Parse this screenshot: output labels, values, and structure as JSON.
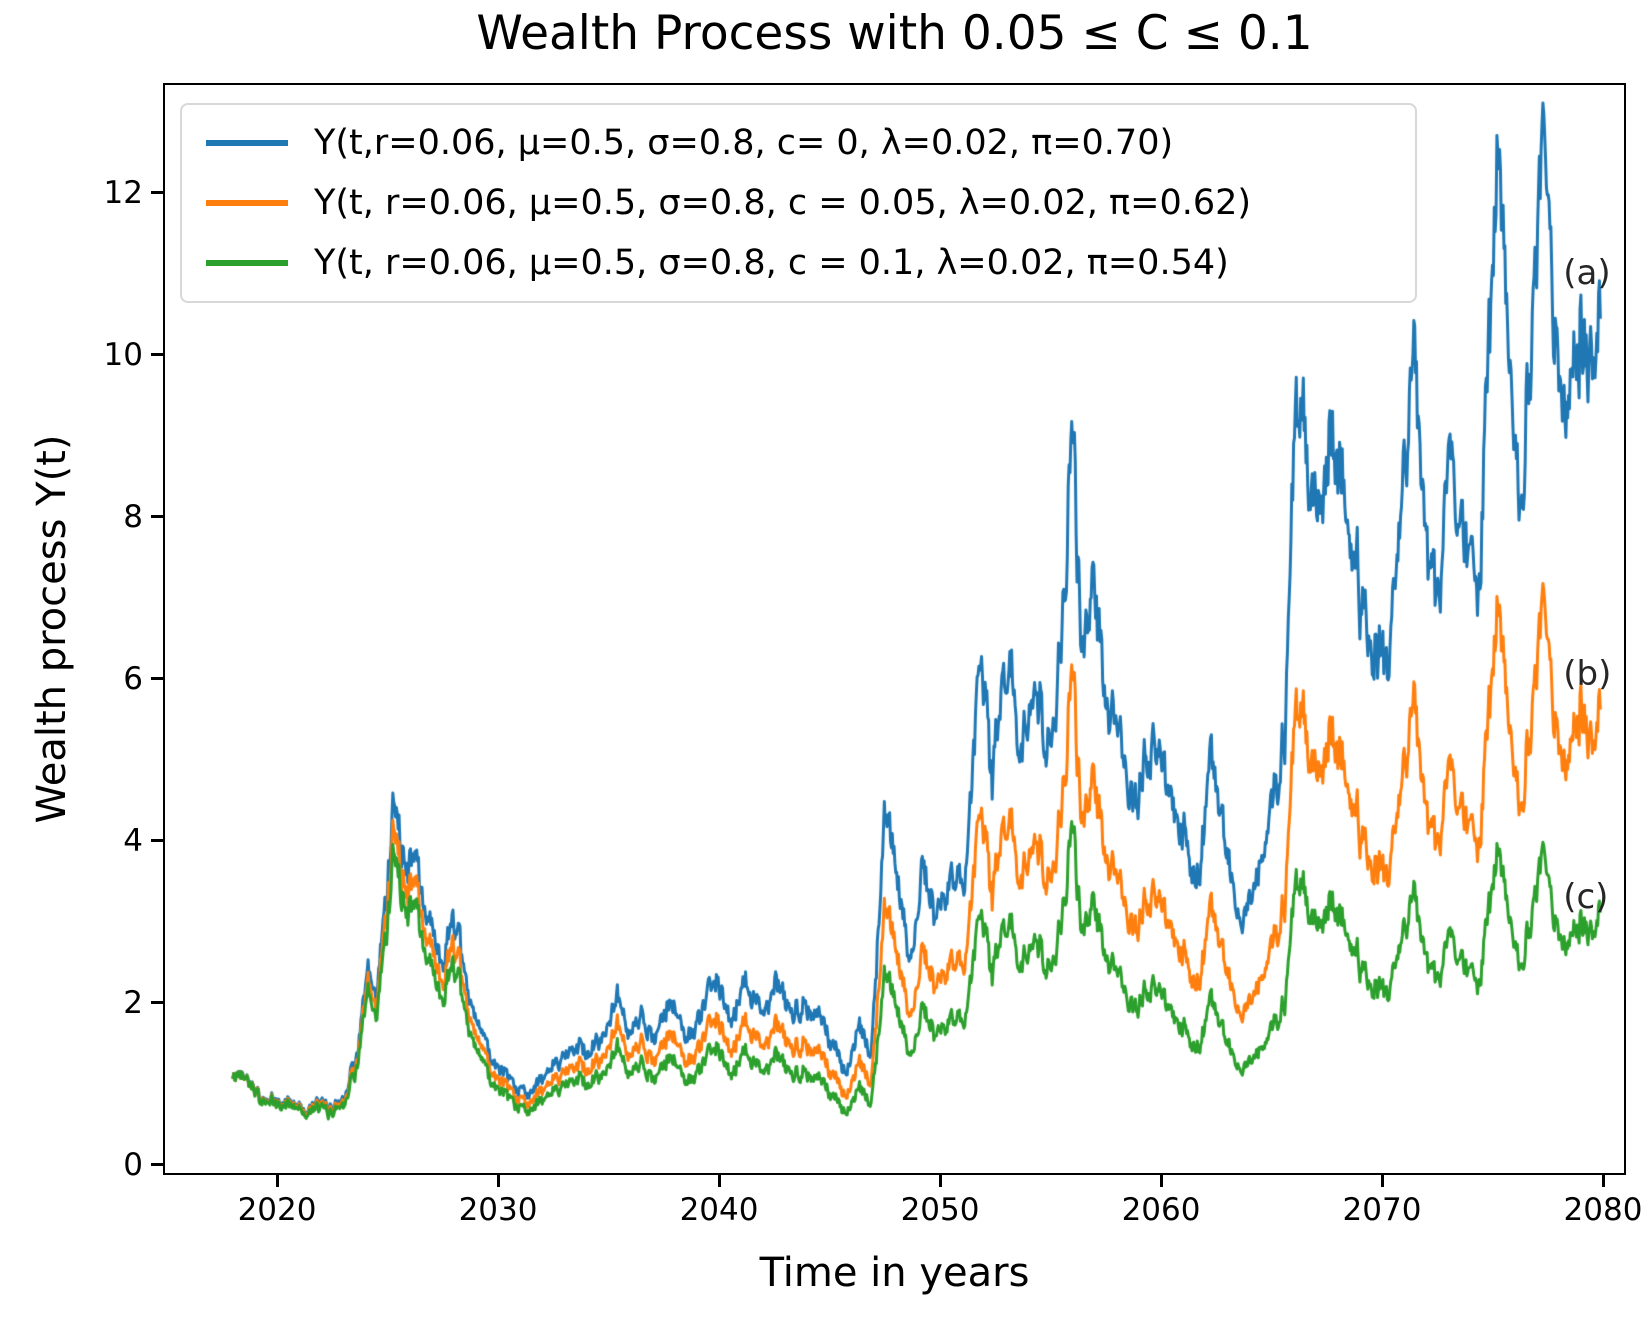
{
  "chart_data": {
    "type": "line",
    "title": "Wealth Process with 0.05 ≤ C ≤ 0.1",
    "xlabel": "Time in years",
    "ylabel": "Wealth process Y(t)",
    "xlim": [
      2014.93,
      2080.95
    ],
    "ylim": [
      -0.1,
      13.33
    ],
    "x_ticks": [
      2020,
      2030,
      2040,
      2050,
      2060,
      2070,
      2080
    ],
    "y_ticks": [
      0,
      2,
      4,
      6,
      8,
      10,
      12
    ],
    "grid": false,
    "legend_position": "upper left",
    "annotations": [
      {
        "text": "(a)",
        "x": 2078.2,
        "y": 11.0
      },
      {
        "text": "(b)",
        "x": 2078.2,
        "y": 6.05
      },
      {
        "text": "(c)",
        "x": 2078.2,
        "y": 3.3
      }
    ],
    "noise": {
      "step_years": 0.04,
      "seed": 42,
      "fast_ar": 0.45,
      "fast_scale": 1.6,
      "slow_ar": 0.92,
      "slow_scale": 0.55,
      "rel_fast": 0.055,
      "abs_fast": 0.04,
      "rel_slow": 0.09
    },
    "x_keypoints": [
      2018.0,
      2018.6,
      2019.2,
      2020.0,
      2020.7,
      2021.3,
      2021.9,
      2022.4,
      2023.0,
      2023.6,
      2024.1,
      2024.5,
      2025.0,
      2025.3,
      2025.8,
      2026.2,
      2026.6,
      2027.1,
      2027.5,
      2027.9,
      2028.4,
      2029.0,
      2029.6,
      2030.2,
      2030.8,
      2031.4,
      2032.1,
      2032.8,
      2033.5,
      2034.1,
      2034.8,
      2035.4,
      2035.9,
      2036.5,
      2037.1,
      2037.8,
      2038.5,
      2039.2,
      2039.8,
      2040.5,
      2041.2,
      2041.9,
      2042.6,
      2043.3,
      2043.9,
      2044.6,
      2045.2,
      2045.7,
      2046.3,
      2046.9,
      2047.5,
      2048.1,
      2048.6,
      2049.2,
      2049.8,
      2050.5,
      2051.1,
      2051.8,
      2052.4,
      2053.0,
      2053.6,
      2054.2,
      2054.8,
      2055.3,
      2056.0,
      2056.4,
      2057.0,
      2057.6,
      2058.3,
      2059.0,
      2059.7,
      2060.4,
      2061.0,
      2061.6,
      2062.3,
      2063.0,
      2063.7,
      2064.4,
      2065.0,
      2065.6,
      2066.1,
      2066.7,
      2067.2,
      2067.7,
      2068.3,
      2068.9,
      2069.6,
      2070.1,
      2070.7,
      2071.4,
      2072.0,
      2072.5,
      2073.1,
      2073.7,
      2074.3,
      2074.8,
      2075.3,
      2075.8,
      2076.2,
      2076.7,
      2077.3,
      2077.9,
      2078.4,
      2079.0,
      2079.5,
      2079.9
    ],
    "series": [
      {
        "name": "Y(t,r=0.06, μ=0.5, σ=0.8, c= 0, λ=0.02, π=0.70)",
        "color": "#1f77b4",
        "values": [
          1.05,
          1.18,
          0.85,
          0.74,
          0.8,
          0.7,
          0.76,
          0.68,
          0.85,
          1.35,
          2.25,
          1.85,
          3.4,
          4.45,
          3.6,
          3.95,
          3.35,
          2.9,
          2.55,
          3.0,
          2.3,
          1.7,
          1.45,
          1.12,
          0.95,
          0.92,
          1.1,
          1.3,
          1.45,
          1.32,
          1.6,
          1.95,
          1.62,
          1.8,
          1.5,
          2.0,
          1.6,
          1.8,
          2.25,
          1.7,
          2.35,
          1.95,
          2.25,
          1.85,
          2.1,
          1.8,
          1.45,
          1.1,
          1.7,
          1.45,
          4.6,
          3.4,
          2.3,
          3.7,
          2.9,
          3.8,
          3.35,
          6.3,
          4.9,
          6.3,
          5.1,
          6.2,
          5.0,
          6.0,
          8.9,
          6.5,
          6.9,
          5.6,
          5.3,
          4.7,
          5.2,
          4.3,
          3.9,
          3.5,
          5.0,
          3.8,
          3.05,
          3.5,
          4.5,
          5.1,
          9.7,
          8.4,
          7.9,
          9.3,
          8.6,
          7.3,
          6.4,
          6.1,
          7.2,
          9.8,
          7.9,
          7.2,
          8.5,
          7.6,
          7.4,
          9.4,
          12.15,
          9.8,
          7.9,
          9.6,
          12.7,
          10.1,
          9.3,
          10.6,
          9.7,
          10.4
        ]
      },
      {
        "name": "Y(t, r=0.06, μ=0.5, σ=0.8, c = 0.05, λ=0.02, π=0.62)",
        "color": "#ff7f0e",
        "values": [
          1.05,
          1.17,
          0.84,
          0.72,
          0.78,
          0.68,
          0.73,
          0.65,
          0.81,
          1.27,
          2.11,
          1.73,
          3.16,
          4.12,
          3.32,
          3.63,
          3.06,
          2.64,
          2.31,
          2.7,
          2.06,
          1.51,
          1.28,
          0.99,
          0.83,
          0.8,
          0.95,
          1.11,
          1.23,
          1.12,
          1.34,
          1.62,
          1.34,
          1.48,
          1.23,
          1.62,
          1.29,
          1.44,
          1.79,
          1.34,
          1.84,
          1.52,
          1.74,
          1.42,
          1.6,
          1.36,
          1.09,
          0.82,
          1.26,
          1.07,
          3.37,
          2.48,
          1.67,
          2.66,
          2.08,
          2.7,
          2.37,
          4.42,
          3.42,
          4.36,
          3.51,
          4.24,
          3.4,
          4.06,
          5.98,
          4.34,
          4.58,
          3.7,
          3.47,
          3.06,
          3.35,
          2.76,
          2.48,
          2.21,
          3.14,
          2.37,
          1.89,
          2.15,
          2.75,
          3.1,
          5.85,
          5.04,
          4.71,
          5.52,
          5.07,
          4.28,
          3.72,
          3.53,
          4.14,
          5.6,
          4.48,
          4.06,
          4.76,
          4.23,
          4.1,
          5.18,
          6.7,
          5.34,
          4.29,
          5.18,
          6.95,
          5.38,
          4.93,
          5.85,
          5.08,
          5.6
        ]
      },
      {
        "name": "Y(t, r=0.06, μ=0.5, σ=0.8, c = 0.1, λ=0.02, π=0.54)",
        "color": "#2ca02c",
        "values": [
          1.05,
          1.17,
          0.83,
          0.71,
          0.76,
          0.65,
          0.7,
          0.62,
          0.77,
          1.2,
          1.99,
          1.62,
          2.94,
          3.83,
          3.07,
          3.34,
          2.81,
          2.4,
          2.1,
          2.45,
          1.86,
          1.36,
          1.14,
          0.87,
          0.73,
          0.7,
          0.82,
          0.96,
          1.06,
          0.95,
          1.13,
          1.36,
          1.12,
          1.23,
          1.01,
          1.33,
          1.05,
          1.16,
          1.44,
          1.07,
          1.46,
          1.2,
          1.36,
          1.1,
          1.23,
          1.04,
          0.83,
          0.62,
          0.95,
          0.8,
          2.51,
          1.84,
          1.23,
          1.95,
          1.51,
          1.95,
          1.7,
          3.15,
          2.42,
          3.07,
          2.46,
          2.95,
          2.35,
          2.79,
          4.1,
          2.96,
          3.1,
          2.49,
          2.32,
          2.03,
          2.21,
          1.8,
          1.61,
          1.43,
          2.01,
          1.51,
          1.2,
          1.35,
          1.72,
          1.92,
          3.62,
          3.1,
          2.88,
          3.36,
          3.07,
          2.57,
          2.22,
          2.1,
          2.45,
          3.28,
          2.61,
          2.35,
          2.75,
          2.42,
          2.33,
          2.93,
          3.78,
          3.0,
          2.39,
          2.88,
          3.85,
          2.96,
          2.7,
          3.1,
          2.8,
          3.1
        ]
      }
    ]
  }
}
